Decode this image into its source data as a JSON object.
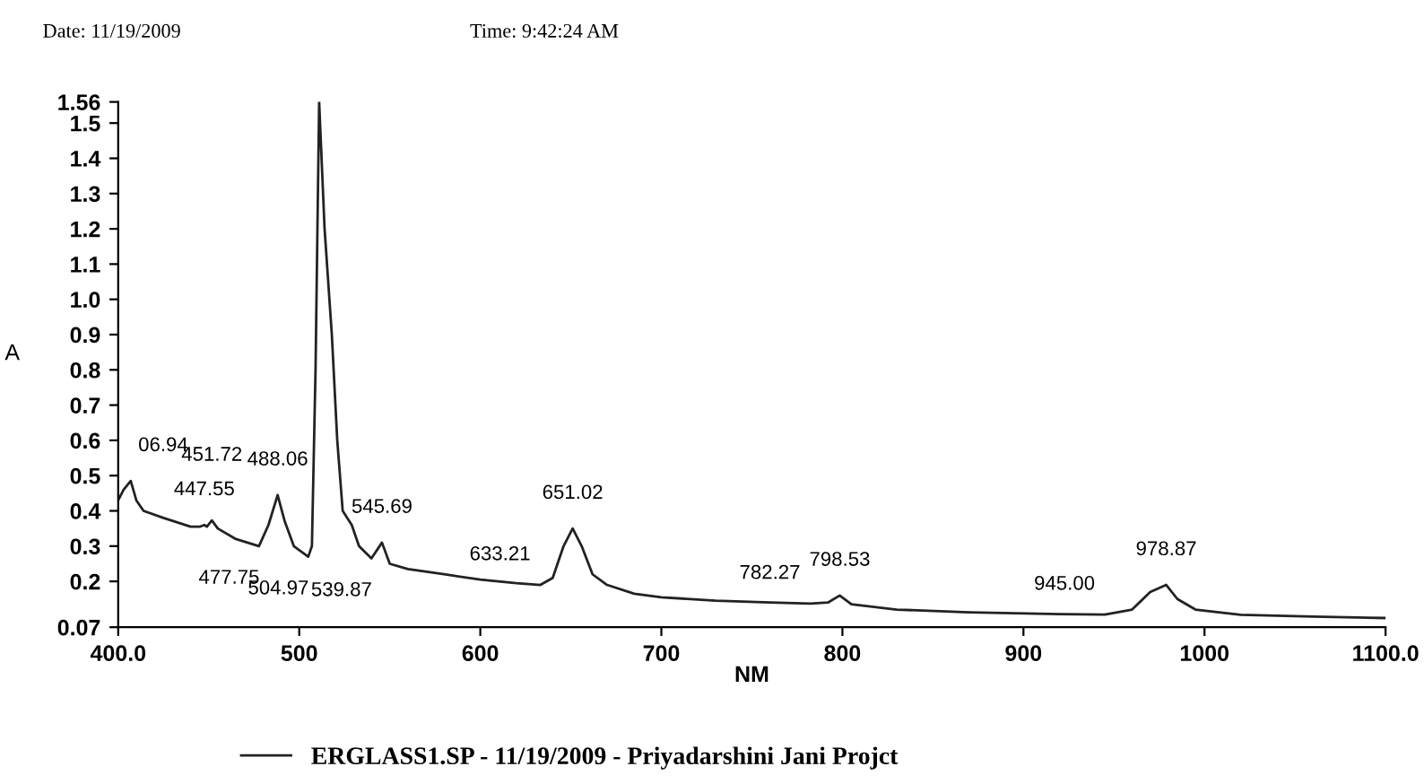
{
  "chart_data": {
    "type": "line",
    "xlabel": "NM",
    "ylabel": "A",
    "annotations": [
      "Date: 11/19/2009",
      "Time: 9:42:24 AM",
      {
        "text": "06.94",
        "x": 406.94,
        "y": 0.485
      },
      {
        "text": "447.55",
        "x": 447.55,
        "y": 0.36
      },
      {
        "text": "451.72",
        "x": 451.72,
        "y": 0.373
      },
      {
        "text": "477.75",
        "x": 477.75,
        "y": 0.3
      },
      {
        "text": "488.06",
        "x": 488.06,
        "y": 0.445
      },
      {
        "text": "504.97",
        "x": 504.97,
        "y": 0.27
      },
      {
        "text": "539.87",
        "x": 539.87,
        "y": 0.265
      },
      {
        "text": "545.69",
        "x": 545.69,
        "y": 0.31
      },
      {
        "text": "633.21",
        "x": 633.21,
        "y": 0.19
      },
      {
        "text": "651.02",
        "x": 651.02,
        "y": 0.35
      },
      {
        "text": "782.27",
        "x": 782.27,
        "y": 0.137
      },
      {
        "text": "798.53",
        "x": 798.53,
        "y": 0.16
      },
      {
        "text": "945.00",
        "x": 945.0,
        "y": 0.106
      },
      {
        "text": "978.87",
        "x": 978.87,
        "y": 0.19
      }
    ],
    "series": [
      {
        "name": "ERGLASS1.SP - 11/19/2009 - Priyadarshini Jani Projct",
        "color": "#222222",
        "x": [
          400,
          403,
          406.94,
          410,
          414,
          425,
          440,
          445,
          447.55,
          449,
          451.72,
          455,
          465,
          477.75,
          483,
          488.06,
          492,
          497,
          504.97,
          507,
          509,
          511,
          514,
          518,
          521,
          524,
          529,
          533,
          539.87,
          545.69,
          550,
          560,
          580,
          600,
          620,
          633.21,
          640,
          646,
          651.02,
          656,
          662,
          670,
          685,
          700,
          730,
          760,
          782.27,
          792,
          798.53,
          805,
          830,
          870,
          920,
          945,
          960,
          970,
          978.87,
          985,
          995,
          1020,
          1060,
          1100
        ],
        "values": [
          0.43,
          0.46,
          0.485,
          0.43,
          0.4,
          0.38,
          0.355,
          0.355,
          0.36,
          0.355,
          0.373,
          0.35,
          0.32,
          0.3,
          0.36,
          0.445,
          0.37,
          0.3,
          0.27,
          0.3,
          0.8,
          1.56,
          1.2,
          0.9,
          0.6,
          0.4,
          0.36,
          0.3,
          0.265,
          0.31,
          0.25,
          0.235,
          0.22,
          0.205,
          0.195,
          0.19,
          0.21,
          0.3,
          0.35,
          0.3,
          0.22,
          0.19,
          0.165,
          0.155,
          0.145,
          0.14,
          0.137,
          0.14,
          0.16,
          0.135,
          0.12,
          0.112,
          0.107,
          0.106,
          0.12,
          0.17,
          0.19,
          0.15,
          0.12,
          0.105,
          0.1,
          0.096
        ]
      }
    ],
    "xlim": [
      400.0,
      1100.0
    ],
    "xticks": [
      {
        "value": 400,
        "label": "400.0"
      },
      500,
      600,
      700,
      800,
      900,
      1000,
      {
        "value": 1100,
        "label": "1100.0"
      }
    ],
    "ylim": [
      0.07,
      1.56
    ],
    "yticks": [
      0.07,
      0.2,
      0.3,
      0.4,
      0.5,
      0.6,
      0.7,
      0.8,
      0.9,
      {
        "value": 1,
        "label": "1.0"
      },
      1.1,
      1.2,
      1.3,
      1.4,
      1.5,
      1.56
    ],
    "grid": false,
    "legend": "bottom",
    "marker": "none",
    "line_style": "solid"
  }
}
